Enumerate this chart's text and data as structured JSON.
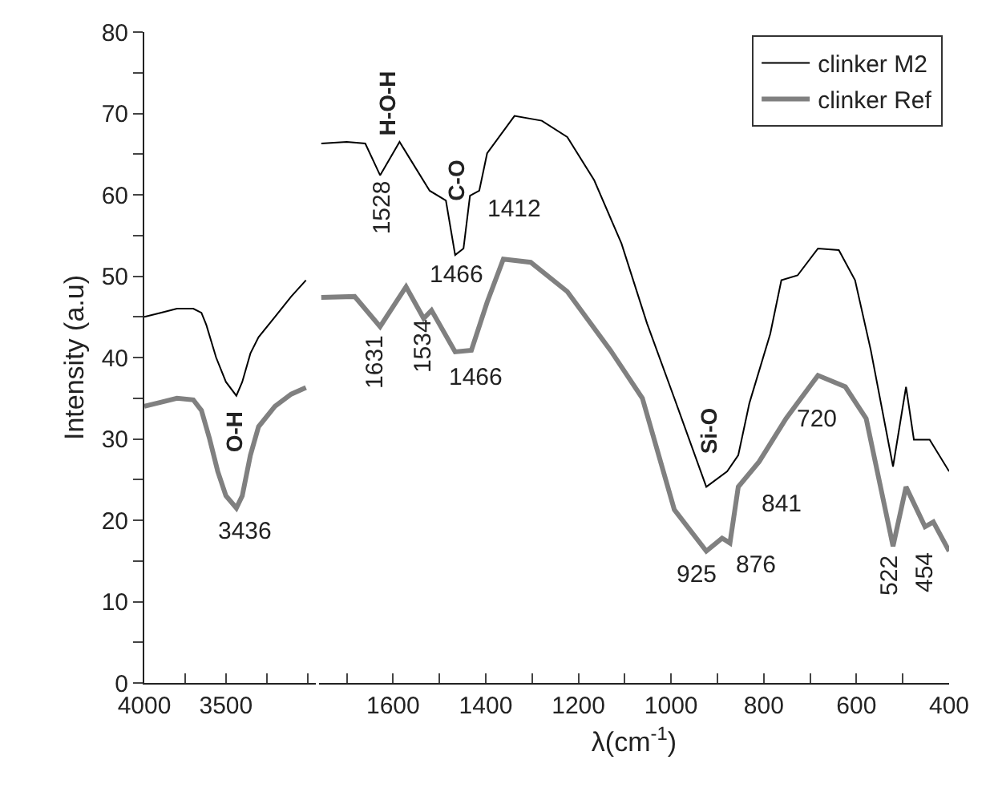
{
  "chart_data": [
    {
      "type": "line",
      "ylabel": "Intensity (a.u)",
      "xlim": [
        4000,
        2950
      ],
      "xticks": [
        4000,
        {
          "value": 3750,
          "label": null
        },
        3500,
        {
          "value": 3250,
          "label": null
        },
        {
          "value": 3000,
          "label": null
        }
      ],
      "ylim": [
        0,
        80
      ],
      "yticks": [
        0,
        {
          "value": 5,
          "label": null
        },
        10,
        {
          "value": 15,
          "label": null
        },
        20,
        {
          "value": 25,
          "label": null
        },
        30,
        {
          "value": 35,
          "label": null
        },
        40,
        {
          "value": 45,
          "label": null
        },
        50,
        {
          "value": 55,
          "label": null
        },
        60,
        {
          "value": 65,
          "label": null
        },
        70,
        {
          "value": 75,
          "label": null
        },
        80
      ],
      "legend": false,
      "series": [
        {
          "color": "#000000",
          "x": [
            4000,
            3900,
            3800,
            3700,
            3650,
            3620,
            3560,
            3500,
            3436,
            3400,
            3350,
            3300,
            3200,
            3100,
            3010
          ],
          "values": [
            45,
            45.5,
            46,
            46,
            45.5,
            44,
            40,
            37,
            35.3,
            37,
            40.5,
            42.5,
            45,
            47.5,
            49.5
          ]
        },
        {
          "color": "#808080",
          "x": [
            4000,
            3900,
            3800,
            3700,
            3650,
            3600,
            3550,
            3500,
            3436,
            3400,
            3350,
            3300,
            3200,
            3100,
            3010
          ],
          "values": [
            34,
            34.5,
            35,
            34.8,
            33.5,
            30,
            26,
            23,
            21.5,
            23,
            28,
            31.5,
            34,
            35.5,
            36.3
          ]
        }
      ],
      "annotations": [
        "O-H",
        "3436"
      ]
    },
    {
      "type": "line",
      "xlabel": "λ(cm$^{-1}$)",
      "xlim": [
        1760,
        400
      ],
      "xticks": [
        {
          "value": 1700,
          "label": null
        },
        1600,
        {
          "value": 1500,
          "label": null
        },
        1400,
        {
          "value": 1300,
          "label": null
        },
        1200,
        {
          "value": 1100,
          "label": null
        },
        1000,
        {
          "value": 900,
          "label": null
        },
        800,
        {
          "value": 700,
          "label": null
        },
        600,
        {
          "value": 500,
          "label": null
        },
        400
      ],
      "ylim": [
        0,
        80
      ],
      "tick_labels": "x",
      "legend": "top right",
      "series": [
        {
          "name": "clinker M2",
          "color": "#000000",
          "x": [
            1755,
            1700,
            1660,
            1628,
            1586,
            1521,
            1486,
            1466,
            1448,
            1434,
            1414,
            1397,
            1338,
            1279,
            1224,
            1166,
            1107,
            1052,
            993,
            924,
            879,
            855,
            831,
            786,
            762,
            727,
            683,
            638,
            603,
            569,
            521,
            493,
            476,
            442,
            400
          ],
          "values": [
            66.3,
            66.5,
            66.3,
            62.4,
            66.5,
            60.5,
            59.3,
            52.6,
            53.4,
            59.9,
            60.5,
            65.1,
            69.7,
            69.1,
            67.1,
            61.8,
            54,
            44.2,
            35,
            24.1,
            26,
            28,
            34.4,
            42.9,
            49.5,
            50.1,
            53.4,
            53.2,
            49.5,
            40.9,
            26.6,
            36.4,
            29.9,
            29.9,
            26
          ]
        },
        {
          "name": "clinker Ref",
          "color": "#808080",
          "x": [
            1755,
            1683,
            1628,
            1572,
            1534,
            1517,
            1466,
            1431,
            1397,
            1362,
            1303,
            1224,
            1131,
            1062,
            993,
            924,
            890,
            873,
            855,
            810,
            752,
            683,
            624,
            579,
            521,
            493,
            452,
            434,
            400
          ],
          "values": [
            47.4,
            47.5,
            43.8,
            48.7,
            44.8,
            45.8,
            40.7,
            40.9,
            46.8,
            52.1,
            51.7,
            48.1,
            40.9,
            35,
            21.3,
            16.2,
            17.8,
            17.2,
            24.1,
            27.2,
            32.5,
            37.8,
            36.4,
            32.5,
            16.8,
            24.1,
            19.2,
            19.8,
            16.2
          ]
        }
      ],
      "annotations": [
        "H-O-H",
        "1528",
        "C-O",
        "1412",
        "1466",
        "1631",
        "1534",
        "1466",
        "Si-O",
        "720",
        "841",
        "925",
        "876",
        "522",
        "454"
      ]
    }
  ]
}
